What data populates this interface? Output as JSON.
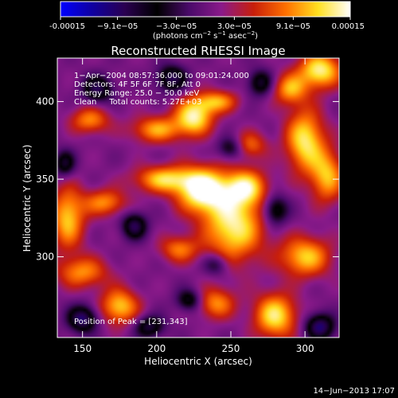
{
  "chart_data": {
    "type": "heatmap",
    "title": "Reconstructed RHESSI Image",
    "xlabel": "Heliocentric X (arcsec)",
    "ylabel": "Heliocentric Y (arcsec)",
    "xlim": [
      133,
      323
    ],
    "ylim": [
      248,
      428
    ],
    "x_ticks": [
      150,
      200,
      250,
      300
    ],
    "y_ticks": [
      300,
      350,
      400
    ],
    "colorbar": {
      "range": [
        -0.00015,
        0.00015
      ],
      "tick_values": [
        -0.00015,
        -9.1e-05,
        -3e-05,
        3e-05,
        9.1e-05,
        0.00015
      ],
      "tick_labels": [
        "-0.00015",
        "−9.1e−05",
        "−3.0e−05",
        "3.0e−05",
        "9.1e−05",
        "0.00015"
      ],
      "unit_main": "(photons cm",
      "unit_exp1": "−2",
      "unit_mid": " s",
      "unit_exp2": "−1",
      "unit_end": " asec",
      "unit_exp3": "−2",
      "unit_close": ")",
      "stops": [
        "#0000ff",
        "#1000a0",
        "#2a0050",
        "#000000",
        "#4a0a6a",
        "#8a1a8a",
        "#c81e0a",
        "#ff7000",
        "#ffe020",
        "#ffffff"
      ]
    },
    "annotations": {
      "time_range": "1−Apr−2004 08:57:36.000 to 09:01:24.000",
      "detectors": "Detectors: 4F 5F 6F 7F 8F, Att 0",
      "energy": "Energy Range: 25.0 − 50.0 keV",
      "method": "Clean     Total counts: 5.27E+03",
      "peak": "Position of Peak = [231,343]"
    },
    "blobs": [
      {
        "x": 231,
        "y": 343,
        "a": 1.0,
        "sx": 12,
        "sy": 10
      },
      {
        "x": 252,
        "y": 320,
        "a": 0.85,
        "sx": 14,
        "sy": 16
      },
      {
        "x": 260,
        "y": 345,
        "a": 0.7,
        "sx": 10,
        "sy": 8
      },
      {
        "x": 205,
        "y": 350,
        "a": 0.7,
        "sx": 14,
        "sy": 6
      },
      {
        "x": 225,
        "y": 390,
        "a": 0.85,
        "sx": 9,
        "sy": 8
      },
      {
        "x": 200,
        "y": 382,
        "a": 0.6,
        "sx": 12,
        "sy": 6
      },
      {
        "x": 240,
        "y": 400,
        "a": 0.6,
        "sx": 10,
        "sy": 5
      },
      {
        "x": 155,
        "y": 388,
        "a": 0.55,
        "sx": 9,
        "sy": 6
      },
      {
        "x": 140,
        "y": 325,
        "a": 0.7,
        "sx": 8,
        "sy": 14
      },
      {
        "x": 165,
        "y": 335,
        "a": 0.55,
        "sx": 10,
        "sy": 6
      },
      {
        "x": 300,
        "y": 375,
        "a": 0.8,
        "sx": 9,
        "sy": 14
      },
      {
        "x": 315,
        "y": 352,
        "a": 0.65,
        "sx": 8,
        "sy": 12
      },
      {
        "x": 310,
        "y": 420,
        "a": 0.85,
        "sx": 10,
        "sy": 8
      },
      {
        "x": 290,
        "y": 408,
        "a": 0.6,
        "sx": 8,
        "sy": 7
      },
      {
        "x": 280,
        "y": 262,
        "a": 0.8,
        "sx": 10,
        "sy": 10
      },
      {
        "x": 300,
        "y": 300,
        "a": 0.7,
        "sx": 12,
        "sy": 9
      },
      {
        "x": 175,
        "y": 268,
        "a": 0.7,
        "sx": 9,
        "sy": 8
      },
      {
        "x": 150,
        "y": 290,
        "a": 0.55,
        "sx": 12,
        "sy": 7
      },
      {
        "x": 240,
        "y": 270,
        "a": 0.55,
        "sx": 9,
        "sy": 7
      },
      {
        "x": 215,
        "y": 305,
        "a": 0.5,
        "sx": 9,
        "sy": 6
      },
      {
        "x": 263,
        "y": 372,
        "a": 0.45,
        "sx": 8,
        "sy": 6
      },
      {
        "x": 150,
        "y": 260,
        "a": -0.7,
        "sx": 7,
        "sy": 6
      },
      {
        "x": 185,
        "y": 320,
        "a": -0.6,
        "sx": 6,
        "sy": 6
      },
      {
        "x": 160,
        "y": 408,
        "a": -0.6,
        "sx": 7,
        "sy": 6
      },
      {
        "x": 210,
        "y": 415,
        "a": -0.6,
        "sx": 7,
        "sy": 6
      },
      {
        "x": 250,
        "y": 370,
        "a": -0.45,
        "sx": 6,
        "sy": 5
      },
      {
        "x": 280,
        "y": 330,
        "a": -0.55,
        "sx": 6,
        "sy": 7
      },
      {
        "x": 240,
        "y": 295,
        "a": -0.4,
        "sx": 6,
        "sy": 5
      },
      {
        "x": 310,
        "y": 255,
        "a": -0.7,
        "sx": 7,
        "sy": 6
      },
      {
        "x": 195,
        "y": 255,
        "a": -0.55,
        "sx": 7,
        "sy": 5
      },
      {
        "x": 270,
        "y": 412,
        "a": -0.5,
        "sx": 6,
        "sy": 6
      },
      {
        "x": 138,
        "y": 360,
        "a": -0.5,
        "sx": 5,
        "sy": 6
      },
      {
        "x": 222,
        "y": 272,
        "a": -0.5,
        "sx": 6,
        "sy": 5
      }
    ]
  },
  "footer": {
    "timestamp": "14−Jun−2013 17:07"
  }
}
